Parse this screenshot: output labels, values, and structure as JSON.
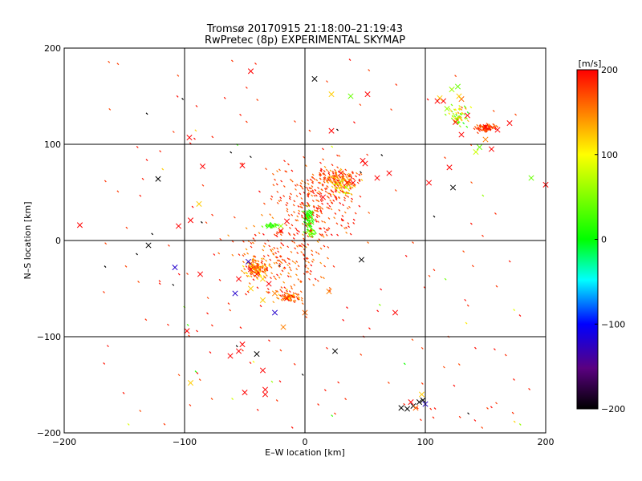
{
  "chart_data": {
    "type": "scatter",
    "title": "Tromsø 20170915 21:18:00–21:19:43",
    "subtitle": "RwPretec (8p) EXPERIMENTAL SKYMAP",
    "xlabel": "E–W location [km]",
    "ylabel": "N–S location [km]",
    "xlim": [
      -200,
      200
    ],
    "ylim": [
      -200,
      200
    ],
    "xticks": [
      -200,
      -100,
      0,
      100,
      200
    ],
    "yticks": [
      -200,
      -100,
      0,
      100,
      200
    ],
    "grid_lines": [
      -100,
      0,
      100
    ],
    "colorbar": {
      "label": "[m/s]",
      "range": [
        -200,
        200
      ],
      "ticks": [
        200,
        100,
        0,
        -100,
        -200
      ]
    },
    "crosses": [
      [
        -45,
        176,
        200
      ],
      [
        8,
        168,
        -200
      ],
      [
        -130,
        -5,
        -200
      ],
      [
        22,
        152,
        120
      ],
      [
        38,
        150,
        40
      ],
      [
        52,
        152,
        200
      ],
      [
        -96,
        107,
        200
      ],
      [
        -122,
        64,
        -200
      ],
      [
        -85,
        77,
        200
      ],
      [
        -52,
        78,
        200
      ],
      [
        22,
        114,
        200
      ],
      [
        123,
        55,
        -200
      ],
      [
        120,
        76,
        200
      ],
      [
        103,
        60,
        200
      ],
      [
        150,
        118,
        200
      ],
      [
        155,
        95,
        200
      ],
      [
        130,
        110,
        200
      ],
      [
        125,
        123,
        200
      ],
      [
        160,
        115,
        200
      ],
      [
        170,
        122,
        200
      ],
      [
        188,
        65,
        40
      ],
      [
        200,
        58,
        200
      ],
      [
        142,
        92,
        80
      ],
      [
        145,
        97,
        40
      ],
      [
        150,
        105,
        150
      ],
      [
        118,
        137,
        60
      ],
      [
        115,
        145,
        200
      ],
      [
        112,
        148,
        120
      ],
      [
        122,
        157,
        60
      ],
      [
        110,
        145,
        200
      ],
      [
        130,
        147,
        160
      ],
      [
        135,
        130,
        200
      ],
      [
        128,
        150,
        120
      ],
      [
        127,
        160,
        40
      ],
      [
        -187,
        16,
        200
      ],
      [
        -105,
        15,
        200
      ],
      [
        -95,
        21,
        200
      ],
      [
        -88,
        38,
        120
      ],
      [
        -108,
        -28,
        -120
      ],
      [
        -87,
        -35,
        200
      ],
      [
        -58,
        -55,
        -120
      ],
      [
        -98,
        -94,
        200
      ],
      [
        -95,
        -148,
        120
      ],
      [
        -40,
        -118,
        -200
      ],
      [
        -62,
        -120,
        200
      ],
      [
        -52,
        -108,
        200
      ],
      [
        -55,
        -115,
        200
      ],
      [
        -35,
        -135,
        200
      ],
      [
        -33,
        -155,
        200
      ],
      [
        -33,
        -160,
        200
      ],
      [
        -50,
        -158,
        200
      ],
      [
        -45,
        -24,
        160
      ],
      [
        -47,
        -22,
        -120
      ],
      [
        -55,
        -40,
        200
      ],
      [
        -30,
        -45,
        200
      ],
      [
        -45,
        -50,
        120
      ],
      [
        -35,
        -62,
        120
      ],
      [
        -25,
        -75,
        -120
      ],
      [
        -18,
        -90,
        150
      ],
      [
        0,
        -75,
        160
      ],
      [
        20,
        -53,
        150
      ],
      [
        47,
        -20,
        -200
      ],
      [
        75,
        -75,
        200
      ],
      [
        70,
        70,
        200
      ],
      [
        48,
        83,
        200
      ],
      [
        85,
        -175,
        -200
      ],
      [
        90,
        -172,
        -200
      ],
      [
        95,
        -168,
        -200
      ],
      [
        92,
        -174,
        160
      ],
      [
        88,
        -168,
        200
      ],
      [
        100,
        -170,
        -120
      ],
      [
        98,
        -166,
        -200
      ],
      [
        97,
        -160,
        120
      ],
      [
        80,
        -174,
        -200
      ],
      [
        25,
        -115,
        -200
      ],
      [
        40,
        60,
        200
      ],
      [
        30,
        70,
        200
      ],
      [
        15,
        45,
        200
      ],
      [
        35,
        60,
        200
      ],
      [
        60,
        65,
        200
      ],
      [
        50,
        80,
        200
      ],
      [
        -15,
        20,
        200
      ],
      [
        -20,
        15,
        60
      ],
      [
        -30,
        15,
        20
      ],
      [
        -20,
        10,
        200
      ],
      [
        -40,
        -35,
        200
      ],
      [
        -45,
        -30,
        200
      ],
      [
        -35,
        -40,
        120
      ],
      [
        -25,
        -55,
        150
      ],
      [
        -15,
        -60,
        200
      ]
    ],
    "clusters": [
      {
        "cx": 28,
        "cy": 62,
        "rx": 24,
        "ry": 18,
        "n": 160,
        "v": [
          120,
          200
        ]
      },
      {
        "cx": 32,
        "cy": 55,
        "rx": 14,
        "ry": 10,
        "n": 40,
        "v": [
          60,
          140
        ]
      },
      {
        "cx": 3,
        "cy": 22,
        "rx": 6,
        "ry": 18,
        "n": 90,
        "v": [
          0,
          40
        ]
      },
      {
        "cx": 5,
        "cy": 8,
        "rx": 6,
        "ry": 6,
        "n": 30,
        "v": [
          20,
          80
        ]
      },
      {
        "cx": -28,
        "cy": 15,
        "rx": 8,
        "ry": 4,
        "n": 28,
        "v": [
          0,
          50
        ]
      },
      {
        "cx": -40,
        "cy": -30,
        "rx": 14,
        "ry": 14,
        "n": 120,
        "v": [
          100,
          200
        ]
      },
      {
        "cx": -12,
        "cy": -58,
        "rx": 14,
        "ry": 8,
        "n": 80,
        "v": [
          110,
          200
        ]
      },
      {
        "cx": 150,
        "cy": 117,
        "rx": 14,
        "ry": 7,
        "n": 80,
        "v": [
          150,
          200
        ]
      },
      {
        "cx": 128,
        "cy": 130,
        "rx": 14,
        "ry": 14,
        "n": 60,
        "v": [
          -10,
          150
        ]
      },
      {
        "cx": 10,
        "cy": 40,
        "rx": 50,
        "ry": 60,
        "n": 260,
        "v": [
          150,
          200
        ]
      },
      {
        "cx": -20,
        "cy": -20,
        "rx": 55,
        "ry": 55,
        "n": 200,
        "v": [
          140,
          200
        ]
      }
    ],
    "sparse": {
      "n": 200,
      "xlim": [
        -170,
        190
      ],
      "ylim": [
        -195,
        190
      ]
    }
  }
}
